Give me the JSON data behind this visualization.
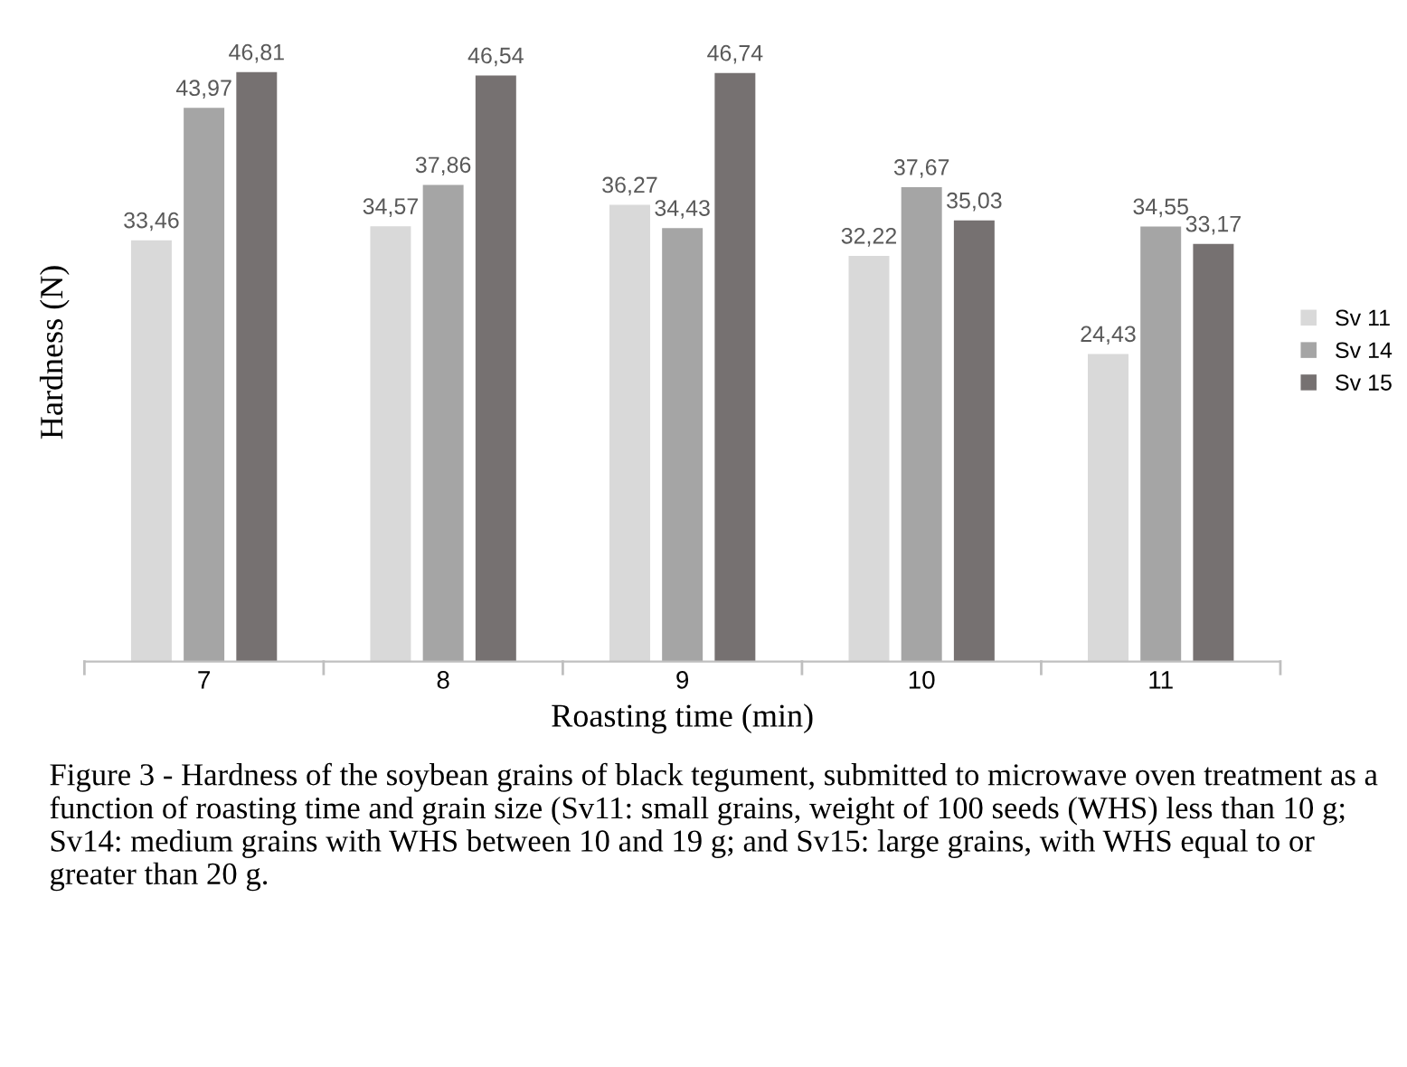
{
  "chart_data": {
    "type": "bar",
    "categories": [
      "7",
      "8",
      "9",
      "10",
      "11"
    ],
    "xlabel": "Roasting time (min)",
    "ylabel": "Hardness (N)",
    "series": [
      {
        "name": "Sv 11",
        "color": "#d9d9d9",
        "values": [
          33.46,
          34.57,
          36.27,
          32.22,
          24.43
        ],
        "value_labels": [
          "33,46",
          "34,57",
          "36,27",
          "32,22",
          "24,43"
        ]
      },
      {
        "name": "Sv 14",
        "color": "#a5a5a5",
        "values": [
          43.97,
          37.86,
          34.43,
          37.67,
          34.55
        ],
        "value_labels": [
          "43,97",
          "37,86",
          "34,43",
          "37,67",
          "34,55"
        ]
      },
      {
        "name": "Sv 15",
        "color": "#767171",
        "values": [
          46.81,
          46.54,
          46.74,
          35.03,
          33.17
        ],
        "value_labels": [
          "46,81",
          "46,54",
          "46,74",
          "35,03",
          "33,17"
        ]
      }
    ],
    "legend": "right",
    "grid": false,
    "annotations": [
      "Figure 3 - Hardness of the soybean grains of black tegument, submitted to microwave oven treatment as a function of roasting time and grain size (Sv11: small grains, weight of 100 seeds (WHS) less than 10 g; Sv14: medium grains with WHS between 10 and 19 g; and Sv15: large grains, with WHS equal to or greater than 20 g."
    ]
  }
}
